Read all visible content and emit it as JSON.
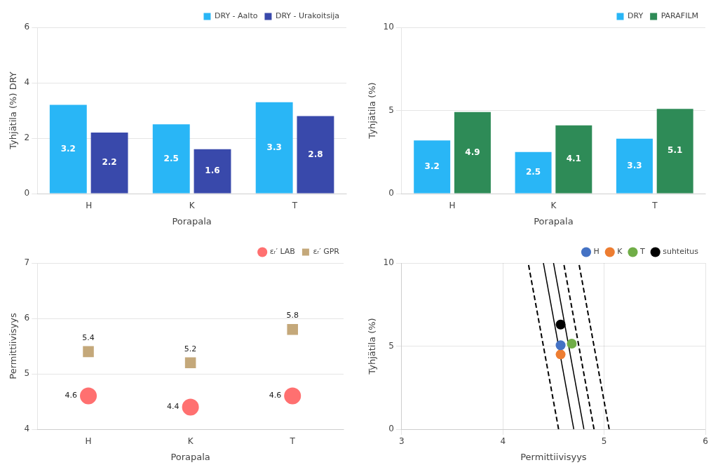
{
  "chart_data": [
    {
      "type": "bar",
      "categories": [
        "H",
        "K",
        "T"
      ],
      "series": [
        {
          "name": "DRY - Aalto",
          "color": "#29B6F6",
          "values": [
            3.2,
            2.5,
            3.3
          ]
        },
        {
          "name": "DRY - Urakoitsija",
          "color": "#3949AB",
          "values": [
            2.2,
            1.6,
            2.8
          ]
        }
      ],
      "xlabel": "Porapala",
      "ylabel": "Tyhjätila (%) DRY",
      "ylim": [
        0,
        6
      ],
      "yticks": [
        0,
        2,
        4,
        6
      ],
      "grid": "y",
      "legend": "upper right",
      "data_labels": true
    },
    {
      "type": "bar",
      "categories": [
        "H",
        "K",
        "T"
      ],
      "series": [
        {
          "name": "DRY",
          "color": "#29B6F6",
          "values": [
            3.2,
            2.5,
            3.3
          ]
        },
        {
          "name": "PARAFILM",
          "color": "#2E8B57",
          "values": [
            4.9,
            4.1,
            5.1
          ]
        }
      ],
      "xlabel": "Porapala",
      "ylabel": "Tyhjätila (%)",
      "ylim": [
        0,
        10
      ],
      "yticks": [
        0,
        5,
        10
      ],
      "grid": "y",
      "legend": "upper right",
      "data_labels": true
    },
    {
      "type": "scatter",
      "categories": [
        "H",
        "K",
        "T"
      ],
      "series": [
        {
          "name": "εᵣ′ LAB",
          "color": "#FF7070",
          "marker": "circle",
          "values": [
            4.6,
            4.4,
            4.6
          ]
        },
        {
          "name": "εᵣ′ GPR",
          "color": "#C4A87A",
          "marker": "square",
          "values": [
            5.4,
            5.2,
            5.8
          ]
        }
      ],
      "xlabel": "Porapala",
      "ylabel": "Permittiivisyys",
      "ylim": [
        4,
        7
      ],
      "yticks": [
        4,
        5,
        6,
        7
      ],
      "grid": "y",
      "legend": "upper right",
      "data_labels": true
    },
    {
      "type": "scatter",
      "series": [
        {
          "type": "line",
          "color": "#000000",
          "line_style": "dashed",
          "x": [
            4.55,
            4.25
          ],
          "y": [
            0,
            10
          ]
        },
        {
          "type": "line",
          "color": "#000000",
          "line_style": "solid",
          "x": [
            4.7,
            4.4
          ],
          "y": [
            0,
            10
          ]
        },
        {
          "type": "line",
          "color": "#000000",
          "line_style": "solid",
          "x": [
            4.8,
            4.5
          ],
          "y": [
            0,
            10
          ]
        },
        {
          "type": "line",
          "color": "#000000",
          "line_style": "dashed",
          "x": [
            4.9,
            4.6
          ],
          "y": [
            0,
            10
          ]
        },
        {
          "type": "line",
          "color": "#000000",
          "line_style": "dashed",
          "x": [
            5.05,
            4.75
          ],
          "y": [
            0,
            10
          ]
        },
        {
          "name": "H",
          "color": "#4472C4",
          "marker": "circle",
          "x": [
            4.57
          ],
          "y": [
            5.05
          ]
        },
        {
          "name": "K",
          "color": "#ED7D31",
          "marker": "circle",
          "x": [
            4.57
          ],
          "y": [
            4.5
          ]
        },
        {
          "name": "T",
          "color": "#70AD47",
          "marker": "circle",
          "x": [
            4.68
          ],
          "y": [
            5.15
          ]
        },
        {
          "name": "suhteitus",
          "color": "#000000",
          "marker": "circle",
          "x": [
            4.57
          ],
          "y": [
            6.3
          ]
        }
      ],
      "xlabel": "Permittiivisyys",
      "ylabel": "Tyhjätila (%)",
      "xlim": [
        3,
        6
      ],
      "xticks": [
        3,
        4,
        5,
        6
      ],
      "ylim": [
        0,
        10
      ],
      "yticks": [
        0,
        5,
        10
      ],
      "grid": true,
      "legend": "upper right"
    }
  ]
}
